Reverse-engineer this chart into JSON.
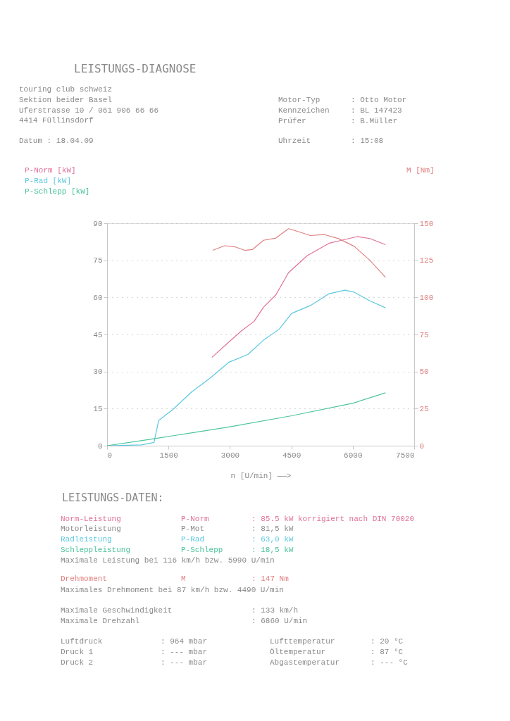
{
  "chart_data": {
    "type": "line",
    "title": "LEISTUNGS-DIAGNOSE",
    "xlabel": "n [U/min] ——>",
    "xlim": [
      0,
      7500
    ],
    "xticks": [
      0,
      1500,
      3000,
      4500,
      6000,
      7500
    ],
    "ylim": [
      0,
      90
    ],
    "yticks": [
      0,
      15,
      30,
      45,
      60,
      75,
      90
    ],
    "y2lim": [
      0,
      150
    ],
    "y2ticks": [
      0,
      25,
      50,
      75,
      100,
      125,
      150
    ],
    "grid": "y",
    "legend": "top left",
    "line_style": "solid",
    "series": [
      {
        "name": "P-Norm [kW]",
        "color": "#e0709a",
        "x": [
          2559,
          2979,
          3285,
          3590,
          3820,
          4125,
          4431,
          4889,
          5424,
          5729,
          6111,
          6417,
          6799
        ],
        "values": [
          35.7,
          42,
          46.5,
          50.3,
          56,
          61.1,
          70,
          76.9,
          81.9,
          83.1,
          84.6,
          83.8,
          81.3
        ]
      },
      {
        "name": "P-Rad [kW]",
        "color": "#5cc8e0",
        "x": [
          0,
          840,
          1146,
          1260,
          1451,
          1604,
          2063,
          2521,
          2979,
          3438,
          3820,
          4202,
          4507,
          4966,
          5424,
          5806,
          6035,
          6417,
          6799
        ],
        "values": [
          0,
          0.3,
          1.3,
          10.2,
          12.7,
          14.6,
          21.7,
          27.4,
          33.8,
          36.9,
          42.7,
          47.1,
          53.5,
          56.7,
          61.5,
          62.9,
          62.1,
          58.6,
          55.8
        ]
      },
      {
        "name": "P-Schlepp [kW]",
        "color": "#4cc49c",
        "x": [
          0,
          1146,
          2979,
          4507,
          6005,
          6799
        ],
        "values": [
          0,
          2.8,
          7.6,
          12.1,
          17.2,
          21.4
        ]
      },
      {
        "name": "M [Nm]",
        "color": "#e08080",
        "axis": "y2",
        "x": [
          2582,
          2865,
          3132,
          3361,
          3552,
          3820,
          4125,
          4431,
          4660,
          4966,
          5309,
          5653,
          6035,
          6417,
          6799
        ],
        "values": [
          131.7,
          134.8,
          134,
          131.7,
          132.3,
          138.5,
          140,
          146.3,
          144.4,
          141.7,
          142.3,
          139.6,
          134.4,
          125,
          113.5
        ]
      }
    ],
    "annotations": [
      "touring club schweiz",
      "Sektion beider Basel",
      "Uferstrasse 10 / 061 906 66 66",
      "4414 Füllinsdorf",
      "Datum : 18.04.09",
      "Motor-Typ",
      ": Otto Motor",
      "Kennzeichen",
      ": BL 147423",
      "Prüfer",
      ": B.Müller",
      "Uhrzeit",
      ": 15:08",
      "LEISTUNGS-DATEN:",
      "Norm-Leistung",
      "P-Norm",
      ": 85.5 kW korrigiert nach DIN 70020",
      "Motorleistung",
      "P-Mot",
      ": 81,5 kW",
      "Radleistung",
      "P-Rad",
      ": 63,0 kW",
      "Schleppleistung",
      "P-Schlepp",
      ": 18,5 kW",
      "Maximale Leistung bei 116 km/h bzw. 5990 U/min",
      "Drehmoment",
      "M",
      ": 147 Nm",
      "Maximales Drehmoment bei 87 km/h bzw. 4490 U/min",
      "Maximale Geschwindigkeit",
      ": 133 km/h",
      "Maximale Drehzahl",
      ": 6860 U/min",
      "Luftdruck",
      ": 964 mbar",
      "Lufttemperatur",
      ": 20 °C",
      "Druck 1",
      ": --- mbar",
      "Öltemperatur",
      ": 87 °C",
      "Druck 2",
      ": --- mbar",
      "Abgastemperatur",
      ": --- °C"
    ]
  }
}
